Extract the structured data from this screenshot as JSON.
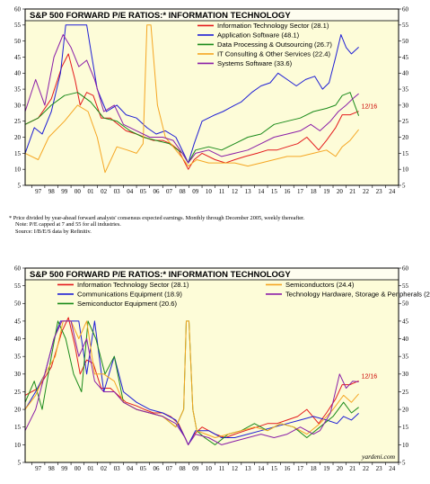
{
  "footnote": {
    "star_line": "*  Price divided by year-ahead forward analysts' consensus expected earnings. Monthly through December 2005, weekly thereafter.",
    "note_line": "Note: P/E capped at 7 and 55 for all industries.",
    "source_line": "Source: I/B/E/S data by Refinitiv."
  },
  "watermark": "yardeni.com",
  "colors": {
    "panel_bg": "#fdfcd8",
    "frame": "#000000",
    "title_bar": "#fefdf0"
  },
  "chart_data": [
    {
      "type": "line",
      "title": "S&P 500 FORWARD P/E RATIOS:* INFORMATION TECHNOLOGY",
      "ylim": [
        5,
        60
      ],
      "yticks": [
        5,
        10,
        15,
        20,
        25,
        30,
        35,
        40,
        45,
        50,
        55,
        60
      ],
      "xlim": [
        1996.5,
        2025.0
      ],
      "xticks": [
        "97",
        "98",
        "99",
        "00",
        "01",
        "02",
        "03",
        "04",
        "05",
        "06",
        "07",
        "08",
        "09",
        "10",
        "11",
        "12",
        "13",
        "14",
        "15",
        "16",
        "17",
        "18",
        "19",
        "20",
        "21",
        "22",
        "23",
        "24"
      ],
      "date_label": "12/16",
      "legend_position": "top-right",
      "series": [
        {
          "name": "Information Technology Sector (28.1)",
          "color": "#e41a1c",
          "x": [
            1996.5,
            1997.5,
            1998.5,
            1999.3,
            1999.8,
            2000.3,
            2000.7,
            2001.2,
            2001.7,
            2002.3,
            2003.0,
            2003.6,
            2004.2,
            2005.0,
            2005.6,
            2006.3,
            2007.0,
            2007.6,
            2008.2,
            2008.7,
            2008.95,
            2009.4,
            2010.0,
            2011.0,
            2011.8,
            2012.5,
            2013.3,
            2014.2,
            2015.0,
            2015.7,
            2016.5,
            2017.3,
            2018.0,
            2018.9,
            2019.5,
            2020.2,
            2020.7,
            2021.3,
            2021.96
          ],
          "values": [
            24,
            26,
            32,
            42,
            46,
            38,
            30,
            34,
            33,
            26,
            26,
            24,
            22,
            21,
            20,
            19,
            19,
            18,
            16,
            12,
            10,
            13,
            15,
            13,
            12,
            13,
            14,
            15,
            16,
            16,
            17,
            18,
            20,
            16,
            19,
            23,
            27,
            27,
            28.1
          ]
        },
        {
          "name": "Application Software (48.1)",
          "color": "#1f1fd6",
          "x": [
            1996.5,
            1997.2,
            1997.8,
            1998.5,
            1999.2,
            1999.6,
            2001.2,
            2001.6,
            2002.0,
            2002.7,
            2003.5,
            2004.2,
            2005.0,
            2005.8,
            2006.5,
            2007.2,
            2008.0,
            2008.6,
            2008.95,
            2009.4,
            2010.0,
            2011.0,
            2011.6,
            2012.5,
            2013.0,
            2013.8,
            2014.5,
            2015.2,
            2015.8,
            2016.5,
            2017.2,
            2017.9,
            2018.6,
            2019.2,
            2019.7,
            2020.2,
            2020.6,
            2021.0,
            2021.4,
            2021.96
          ],
          "values": [
            15,
            23,
            21,
            28,
            40,
            55,
            55,
            45,
            35,
            28,
            30,
            27,
            26,
            23,
            21,
            22,
            20,
            15,
            12,
            18,
            25,
            27,
            28,
            30,
            31,
            34,
            36,
            37,
            40,
            38,
            36,
            38,
            39,
            35,
            37,
            45,
            52,
            48,
            46,
            48.1
          ]
        },
        {
          "name": "Data Processing & Outsourcing (26.7)",
          "color": "#1a8a1a",
          "x": [
            1996.5,
            1997.5,
            1998.5,
            1999.5,
            2000.5,
            2001.5,
            2002.5,
            2003.5,
            2004.5,
            2005.5,
            2006.5,
            2007.5,
            2008.5,
            2008.95,
            2009.5,
            2010.5,
            2011.5,
            2012.5,
            2013.5,
            2014.5,
            2015.5,
            2016.5,
            2017.5,
            2018.5,
            2019.5,
            2020.2,
            2020.7,
            2021.3,
            2021.96
          ],
          "values": [
            24,
            26,
            30,
            33,
            34,
            31,
            26,
            25,
            22,
            20,
            19,
            18,
            15,
            12,
            16,
            17,
            16,
            18,
            20,
            21,
            24,
            25,
            26,
            28,
            29,
            30,
            33,
            34,
            26.7
          ]
        },
        {
          "name": "IT Consulting & Other Services (22.4)",
          "color": "#f5a623",
          "x": [
            1996.5,
            1997.5,
            1998.3,
            1999.5,
            2000.5,
            2001.3,
            2002.0,
            2002.6,
            2003.5,
            2004.3,
            2005.0,
            2005.5,
            2005.8,
            2006.1,
            2006.6,
            2007.2,
            2008.0,
            2008.6,
            2008.95,
            2009.6,
            2010.5,
            2011.5,
            2012.5,
            2013.5,
            2014.5,
            2015.5,
            2016.5,
            2017.5,
            2018.5,
            2019.5,
            2020.2,
            2020.7,
            2021.3,
            2021.96
          ],
          "values": [
            15,
            13,
            20,
            25,
            30,
            28,
            20,
            9,
            17,
            16,
            15,
            18,
            55,
            55,
            30,
            20,
            16,
            13,
            11,
            13,
            12,
            12,
            12,
            11,
            12,
            13,
            14,
            14,
            15,
            16,
            14,
            17,
            19,
            22.4
          ]
        },
        {
          "name": "Systems Software (33.6)",
          "color": "#8b1fa8",
          "x": [
            1996.5,
            1997.3,
            1998.0,
            1998.7,
            1999.4,
            2000.0,
            2000.6,
            2001.2,
            2001.8,
            2002.5,
            2003.3,
            2004.0,
            2005.0,
            2006.0,
            2007.0,
            2007.8,
            2008.5,
            2008.95,
            2009.5,
            2010.5,
            2011.5,
            2012.5,
            2013.5,
            2014.5,
            2015.5,
            2016.5,
            2017.5,
            2018.3,
            2019.0,
            2019.8,
            2020.4,
            2021.0,
            2021.5,
            2021.96
          ],
          "values": [
            28,
            38,
            30,
            45,
            52,
            48,
            42,
            44,
            38,
            28,
            30,
            24,
            22,
            20,
            20,
            19,
            15,
            12,
            15,
            16,
            14,
            15,
            16,
            18,
            20,
            21,
            22,
            24,
            22,
            25,
            28,
            30,
            32,
            33.6
          ]
        }
      ]
    },
    {
      "type": "line",
      "title": "S&P 500 FORWARD P/E RATIOS:* INFORMATION TECHNOLOGY",
      "ylim": [
        5,
        60
      ],
      "yticks": [
        5,
        10,
        15,
        20,
        25,
        30,
        35,
        40,
        45,
        50,
        55,
        60
      ],
      "xlim": [
        1996.5,
        2025.0
      ],
      "xticks": [
        "97",
        "98",
        "99",
        "00",
        "01",
        "02",
        "03",
        "04",
        "05",
        "06",
        "07",
        "08",
        "09",
        "10",
        "11",
        "12",
        "13",
        "14",
        "15",
        "16",
        "17",
        "18",
        "19",
        "20",
        "21",
        "22",
        "23",
        "24"
      ],
      "date_label": "12/16",
      "legend_position": "top",
      "series": [
        {
          "name": "Information Technology Sector (28.1)",
          "color": "#e41a1c",
          "x": [
            1996.5,
            1997.5,
            1998.5,
            1999.3,
            1999.8,
            2000.3,
            2000.7,
            2001.2,
            2001.7,
            2002.3,
            2003.0,
            2003.6,
            2004.2,
            2005.0,
            2005.6,
            2006.3,
            2007.0,
            2007.6,
            2008.2,
            2008.7,
            2008.95,
            2009.4,
            2010.0,
            2011.0,
            2011.8,
            2012.5,
            2013.3,
            2014.2,
            2015.0,
            2015.7,
            2016.5,
            2017.3,
            2018.0,
            2018.9,
            2019.5,
            2020.2,
            2020.7,
            2021.3,
            2021.96
          ],
          "values": [
            24,
            26,
            32,
            42,
            46,
            38,
            30,
            34,
            33,
            26,
            26,
            24,
            22,
            21,
            20,
            19,
            19,
            18,
            16,
            12,
            10,
            13,
            15,
            13,
            12,
            13,
            14,
            15,
            16,
            16,
            17,
            18,
            20,
            16,
            19,
            23,
            27,
            27,
            28.1
          ]
        },
        {
          "name": "Communications Equipment (18.9)",
          "color": "#1f1fd6",
          "x": [
            1996.5,
            1997.3,
            1998.0,
            1998.7,
            1999.2,
            2000.0,
            2000.6,
            2001.2,
            2001.8,
            2002.5,
            2003.3,
            2004.0,
            2005.0,
            2006.0,
            2007.0,
            2008.0,
            2008.7,
            2008.95,
            2009.5,
            2010.5,
            2011.5,
            2012.5,
            2013.5,
            2014.5,
            2015.5,
            2016.5,
            2017.5,
            2018.5,
            2019.5,
            2020.3,
            2020.8,
            2021.4,
            2021.96
          ],
          "values": [
            20,
            25,
            30,
            40,
            45,
            45,
            45,
            30,
            45,
            25,
            35,
            25,
            22,
            20,
            19,
            17,
            12,
            10,
            14,
            14,
            12,
            12,
            13,
            14,
            15,
            16,
            17,
            18,
            17,
            16,
            18,
            17,
            18.9
          ]
        },
        {
          "name": "Semiconductor Equipment (20.6)",
          "color": "#1a8a1a",
          "x": [
            1996.5,
            1997.2,
            1997.8,
            1998.5,
            1999.0,
            1999.6,
            2000.2,
            2000.8,
            2001.3,
            2001.9,
            2002.6,
            2003.3,
            2004.0,
            2005.0,
            2006.0,
            2007.0,
            2008.0,
            2008.6,
            2008.8,
            2009.0,
            2009.3,
            2009.6,
            2010.2,
            2011.0,
            2012.0,
            2013.0,
            2014.0,
            2015.0,
            2016.0,
            2017.0,
            2018.0,
            2019.0,
            2020.0,
            2020.8,
            2021.4,
            2021.96
          ],
          "values": [
            22,
            28,
            20,
            35,
            45,
            40,
            30,
            25,
            45,
            40,
            30,
            35,
            22,
            20,
            19,
            18,
            15,
            20,
            45,
            45,
            20,
            14,
            12,
            10,
            13,
            14,
            16,
            14,
            16,
            15,
            12,
            15,
            18,
            22,
            19,
            20.6
          ]
        },
        {
          "name": "Semiconductors (24.4)",
          "color": "#f5a623",
          "x": [
            1996.5,
            1997.3,
            1998.0,
            1998.8,
            1999.4,
            2000.0,
            2000.6,
            2001.2,
            2001.8,
            2002.5,
            2003.3,
            2004.0,
            2005.0,
            2006.0,
            2007.0,
            2008.0,
            2008.6,
            2008.8,
            2009.0,
            2009.3,
            2009.6,
            2010.3,
            2011.0,
            2012.0,
            2013.0,
            2014.0,
            2015.0,
            2016.0,
            2017.0,
            2018.0,
            2019.0,
            2020.0,
            2020.8,
            2021.4,
            2021.96
          ],
          "values": [
            20,
            24,
            30,
            35,
            45,
            45,
            40,
            45,
            30,
            30,
            28,
            22,
            20,
            19,
            18,
            15,
            20,
            45,
            45,
            20,
            14,
            13,
            12,
            13,
            14,
            15,
            14,
            16,
            15,
            13,
            16,
            20,
            24,
            22,
            24.4
          ]
        },
        {
          "name": "Technology Hardware, Storage & Peripherals (27.8)",
          "color": "#8b1fa8",
          "x": [
            1996.5,
            1997.3,
            1998.0,
            1998.7,
            1999.3,
            2000.0,
            2000.6,
            2001.2,
            2001.8,
            2002.5,
            2003.3,
            2004.0,
            2005.0,
            2006.0,
            2007.0,
            2008.0,
            2008.7,
            2008.95,
            2009.5,
            2010.5,
            2011.5,
            2012.5,
            2013.5,
            2014.5,
            2015.5,
            2016.5,
            2017.5,
            2018.5,
            2019.0,
            2019.8,
            2020.5,
            2021.0,
            2021.5,
            2021.96
          ],
          "values": [
            14,
            20,
            30,
            40,
            45,
            45,
            35,
            40,
            28,
            25,
            25,
            22,
            20,
            19,
            18,
            16,
            12,
            10,
            13,
            12,
            10,
            11,
            12,
            13,
            12,
            13,
            15,
            13,
            14,
            19,
            30,
            26,
            28,
            27.8
          ]
        }
      ]
    }
  ]
}
